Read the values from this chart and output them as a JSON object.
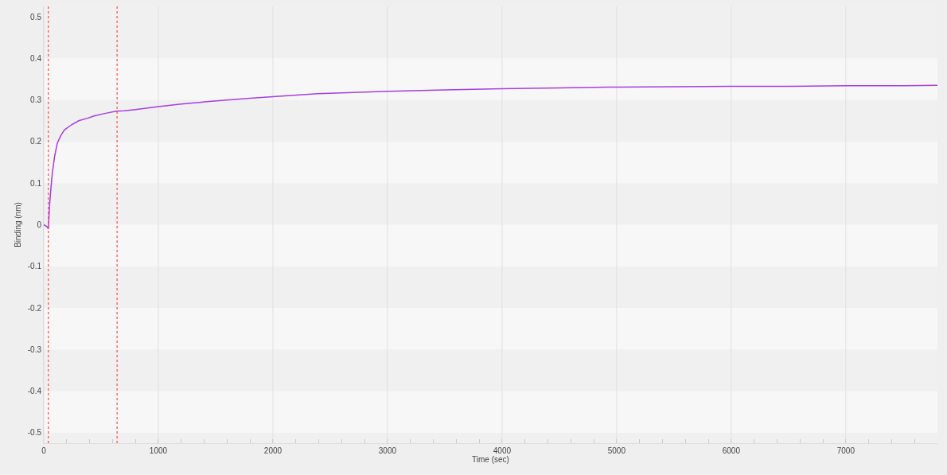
{
  "chart_data": {
    "type": "line",
    "xlabel": "Time (sec)",
    "ylabel": "Binding (nm)",
    "x": [
      0,
      30,
      40,
      50,
      60,
      75,
      95,
      118,
      150,
      180,
      240,
      305,
      380,
      445,
      540,
      632,
      700,
      800,
      1000,
      1200,
      1465,
      1800,
      2000,
      2390,
      2700,
      3000,
      3500,
      4000,
      4500,
      5000,
      5500,
      6000,
      6500,
      7000,
      7500,
      7800
    ],
    "series": [
      {
        "color": "#a63ee0",
        "values": [
          0,
          -0.005,
          -0.01,
          0.044,
          0.08,
          0.125,
          0.165,
          0.196,
          0.215,
          0.228,
          0.24,
          0.25,
          0.256,
          0.262,
          0.268,
          0.273,
          0.274,
          0.277,
          0.284,
          0.29,
          0.297,
          0.304,
          0.308,
          0.315,
          0.318,
          0.321,
          0.324,
          0.327,
          0.329,
          0.331,
          0.332,
          0.333,
          0.333,
          0.334,
          0.334,
          0.335
        ]
      }
    ],
    "xlim": [
      0,
      7800
    ],
    "ylim": [
      -0.525,
      0.525
    ],
    "xticks": [
      0,
      {
        "value": 200,
        "label": null
      },
      {
        "value": 400,
        "label": null
      },
      {
        "value": 600,
        "label": null
      },
      {
        "value": 800,
        "label": null
      },
      1000,
      {
        "value": 1200,
        "label": null
      },
      {
        "value": 1400,
        "label": null
      },
      {
        "value": 1600,
        "label": null
      },
      {
        "value": 1800,
        "label": null
      },
      2000,
      {
        "value": 2200,
        "label": null
      },
      {
        "value": 2400,
        "label": null
      },
      {
        "value": 2600,
        "label": null
      },
      {
        "value": 2800,
        "label": null
      },
      3000,
      {
        "value": 3200,
        "label": null
      },
      {
        "value": 3400,
        "label": null
      },
      {
        "value": 3600,
        "label": null
      },
      {
        "value": 3800,
        "label": null
      },
      4000,
      {
        "value": 4200,
        "label": null
      },
      {
        "value": 4400,
        "label": null
      },
      {
        "value": 4600,
        "label": null
      },
      {
        "value": 4800,
        "label": null
      },
      5000,
      {
        "value": 5200,
        "label": null
      },
      {
        "value": 5400,
        "label": null
      },
      {
        "value": 5600,
        "label": null
      },
      {
        "value": 5800,
        "label": null
      },
      6000,
      {
        "value": 6200,
        "label": null
      },
      {
        "value": 6400,
        "label": null
      },
      {
        "value": 6600,
        "label": null
      },
      {
        "value": 6800,
        "label": null
      },
      7000,
      {
        "value": 7200,
        "label": null
      },
      {
        "value": 7400,
        "label": null
      },
      {
        "value": 7600,
        "label": null
      }
    ],
    "yticks": [
      -0.5,
      -0.4,
      -0.3,
      -0.2,
      -0.1,
      0,
      0.1,
      0.2,
      0.3,
      0.4,
      0.5
    ],
    "ref_lines": [
      {
        "axis": "x",
        "value": 40,
        "color": "#ff4b4b",
        "line_style": "dotted"
      },
      {
        "axis": "x",
        "value": 640,
        "color": "#ff4b4b",
        "line_style": "dotted"
      }
    ],
    "grid": "x",
    "marker": "none",
    "line_style": "solid"
  }
}
